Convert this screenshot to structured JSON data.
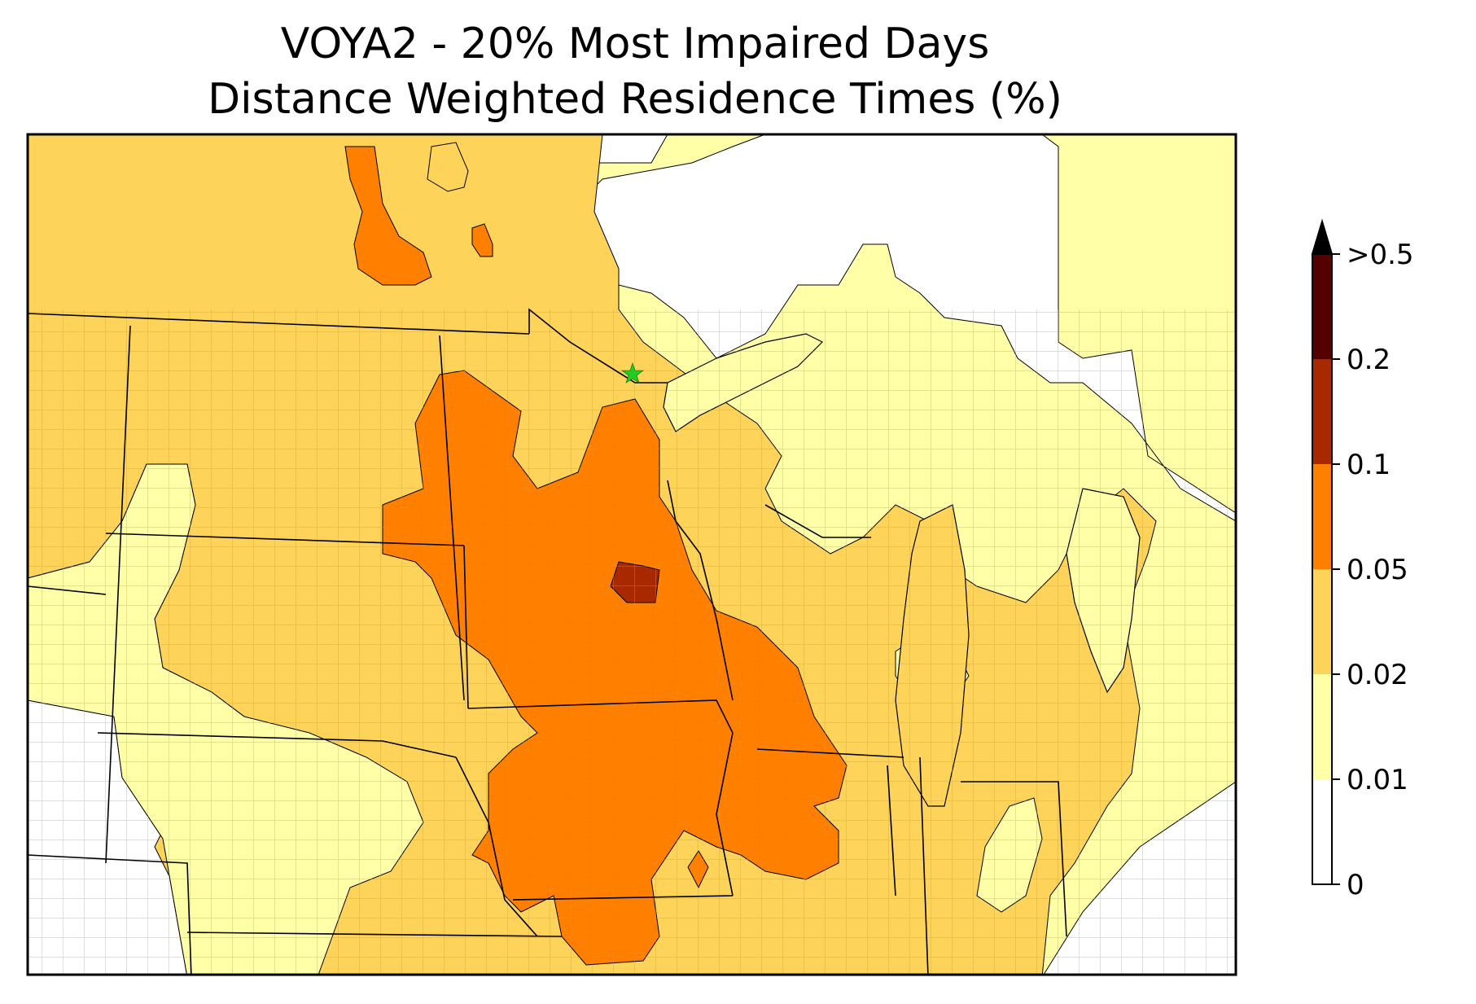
{
  "title_line1": "VOYA2 - 20% Most Impaired Days",
  "title_line2": "Distance Weighted Residence Times (%)",
  "legend": {
    "bins": [
      {
        "label": "0",
        "color": "#ffffff"
      },
      {
        "label": "0.01",
        "color": "#ffffa8"
      },
      {
        "label": "0.02",
        "color": "#fdd35a"
      },
      {
        "label": "0.05",
        "color": "#ff8000"
      },
      {
        "label": "0.1",
        "color": "#a82800"
      },
      {
        "label": "0.2",
        "color": "#550000"
      },
      {
        "label": ">0.5",
        "color": "#000000"
      }
    ]
  },
  "site_marker": {
    "symbol": "star",
    "color": "#22cc22"
  }
}
